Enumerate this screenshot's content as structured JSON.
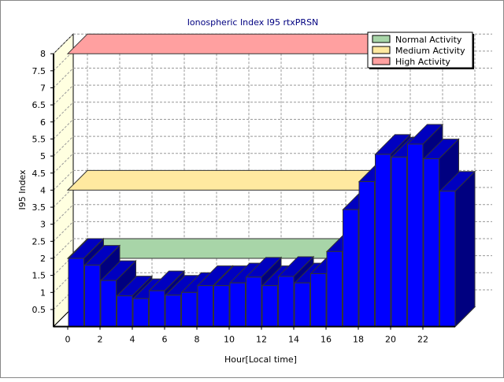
{
  "chart_data": {
    "type": "bar",
    "title": "Ionospheric Index I95 rtxPRSN",
    "xlabel": "Hour[Local time]",
    "ylabel": "I95 Index",
    "ylim": [
      0,
      8
    ],
    "yticks": [
      "0.5",
      "1",
      "1.5",
      "2",
      "2.5",
      "3",
      "3.5",
      "4",
      "4.5",
      "5",
      "5.5",
      "6",
      "6.5",
      "7",
      "7.5",
      "8"
    ],
    "xticks": [
      "0",
      "2",
      "4",
      "6",
      "8",
      "10",
      "12",
      "14",
      "16",
      "18",
      "20",
      "22"
    ],
    "x": [
      0,
      1,
      2,
      3,
      4,
      5,
      6,
      7,
      8,
      9,
      10,
      11,
      12,
      13,
      14,
      15,
      16,
      17,
      18,
      19,
      20,
      21,
      22,
      23
    ],
    "values": [
      2.0,
      1.8,
      1.35,
      0.9,
      0.82,
      1.05,
      0.92,
      1.0,
      1.2,
      1.2,
      1.28,
      1.45,
      1.2,
      1.47,
      1.28,
      1.55,
      2.2,
      3.43,
      4.25,
      5.05,
      4.97,
      5.35,
      4.92,
      3.97
    ],
    "grid": true,
    "legend_position": "top-right",
    "legend": [
      {
        "label": "Normal Activity",
        "color": "#a8d5a8",
        "level": 2
      },
      {
        "label": "Medium Activity",
        "color": "#ffe9a0",
        "level": 4
      },
      {
        "label": "High Activity",
        "color": "#ff a0a0",
        "level": 8
      }
    ],
    "bar_color": "#0000ff"
  }
}
